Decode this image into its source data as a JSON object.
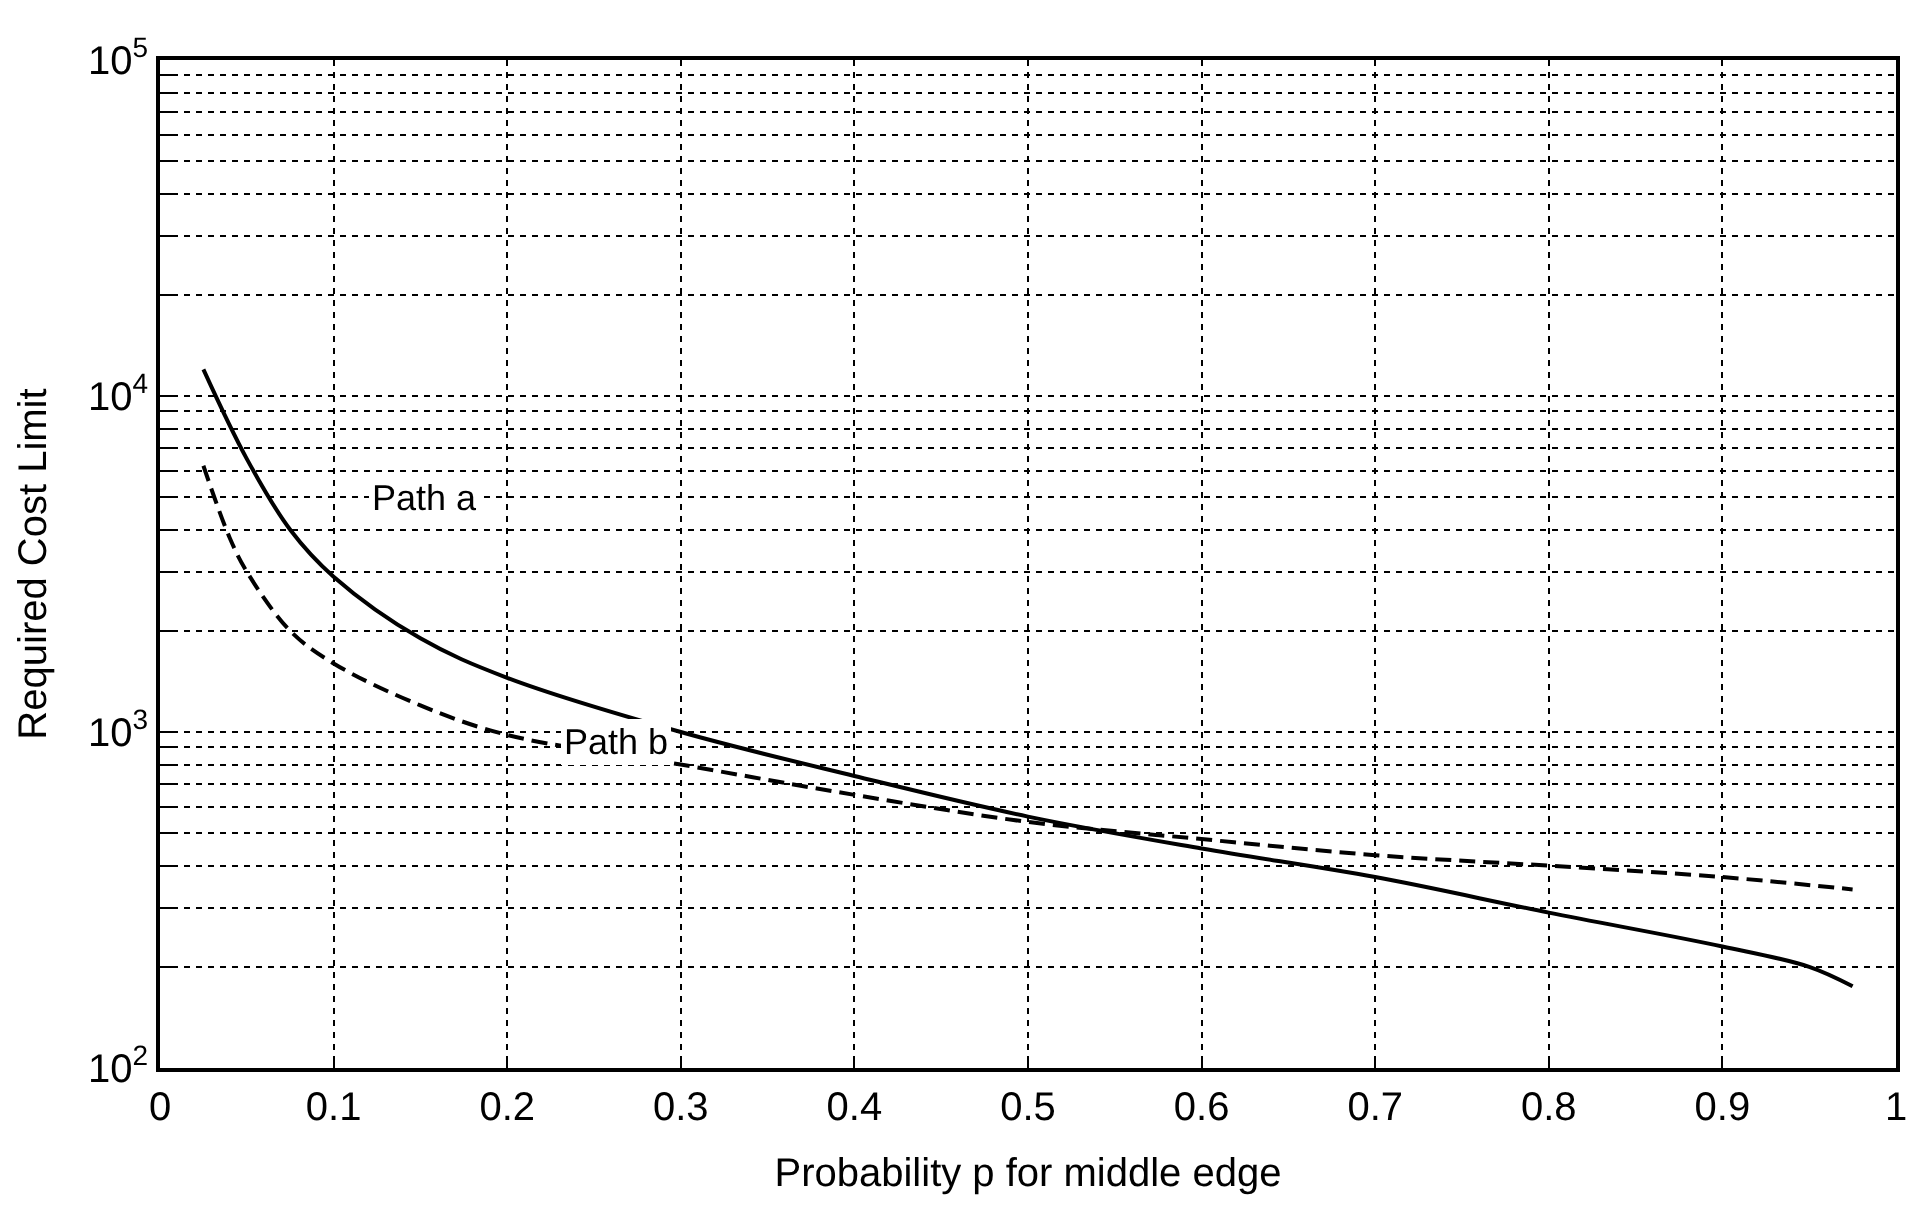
{
  "chart_data": {
    "type": "line",
    "xlabel": "Probability p for middle edge",
    "ylabel": "Required Cost Limit",
    "log": "y",
    "grid": true,
    "marker": "none",
    "xlim": [
      0,
      1
    ],
    "xticks": [
      0,
      0.1,
      0.2,
      0.3,
      0.4,
      0.5,
      0.6,
      0.7,
      0.8,
      0.9,
      1
    ],
    "ylim": [
      100,
      100000
    ],
    "yticks": [
      {
        "value": 100,
        "label": "10$^{2}$"
      },
      {
        "value": 200,
        "label": null
      },
      {
        "value": 300,
        "label": null
      },
      {
        "value": 400,
        "label": null
      },
      {
        "value": 500,
        "label": null
      },
      {
        "value": 600,
        "label": null
      },
      {
        "value": 700,
        "label": null
      },
      {
        "value": 800,
        "label": null
      },
      {
        "value": 900,
        "label": null
      },
      {
        "value": 1000,
        "label": "10$^{3}$"
      },
      {
        "value": 2000,
        "label": null
      },
      {
        "value": 3000,
        "label": null
      },
      {
        "value": 4000,
        "label": null
      },
      {
        "value": 5000,
        "label": null
      },
      {
        "value": 6000,
        "label": null
      },
      {
        "value": 7000,
        "label": null
      },
      {
        "value": 8000,
        "label": null
      },
      {
        "value": 9000,
        "label": null
      },
      {
        "value": 10000,
        "label": "10$^{4}$"
      },
      {
        "value": 20000,
        "label": null
      },
      {
        "value": 30000,
        "label": null
      },
      {
        "value": 40000,
        "label": null
      },
      {
        "value": 50000,
        "label": null
      },
      {
        "value": 60000,
        "label": null
      },
      {
        "value": 70000,
        "label": null
      },
      {
        "value": 80000,
        "label": null
      },
      {
        "value": 90000,
        "label": null
      },
      {
        "value": 100000,
        "label": "10$^{5}$"
      }
    ],
    "series": [
      {
        "color": "#000000",
        "line_style": "solid",
        "x": [
          0.025,
          0.05,
          0.075,
          0.1,
          0.15,
          0.2,
          0.3,
          0.4,
          0.5,
          0.6,
          0.7,
          0.8,
          0.9,
          0.95,
          0.975
        ],
        "values": [
          12000,
          6500,
          4000,
          2900,
          1900,
          1450,
          1000,
          740,
          560,
          450,
          370,
          290,
          230,
          200,
          175
        ]
      },
      {
        "color": "#000000",
        "line_style": "dashed",
        "x": [
          0.025,
          0.04,
          0.05,
          0.075,
          0.1,
          0.15,
          0.2,
          0.3,
          0.4,
          0.5,
          0.6,
          0.7,
          0.8,
          0.9,
          0.975
        ],
        "values": [
          6200,
          3800,
          3000,
          2000,
          1600,
          1200,
          980,
          800,
          650,
          540,
          480,
          430,
          400,
          370,
          340
        ]
      }
    ],
    "annotations": [
      "Path a",
      "Path b"
    ]
  }
}
